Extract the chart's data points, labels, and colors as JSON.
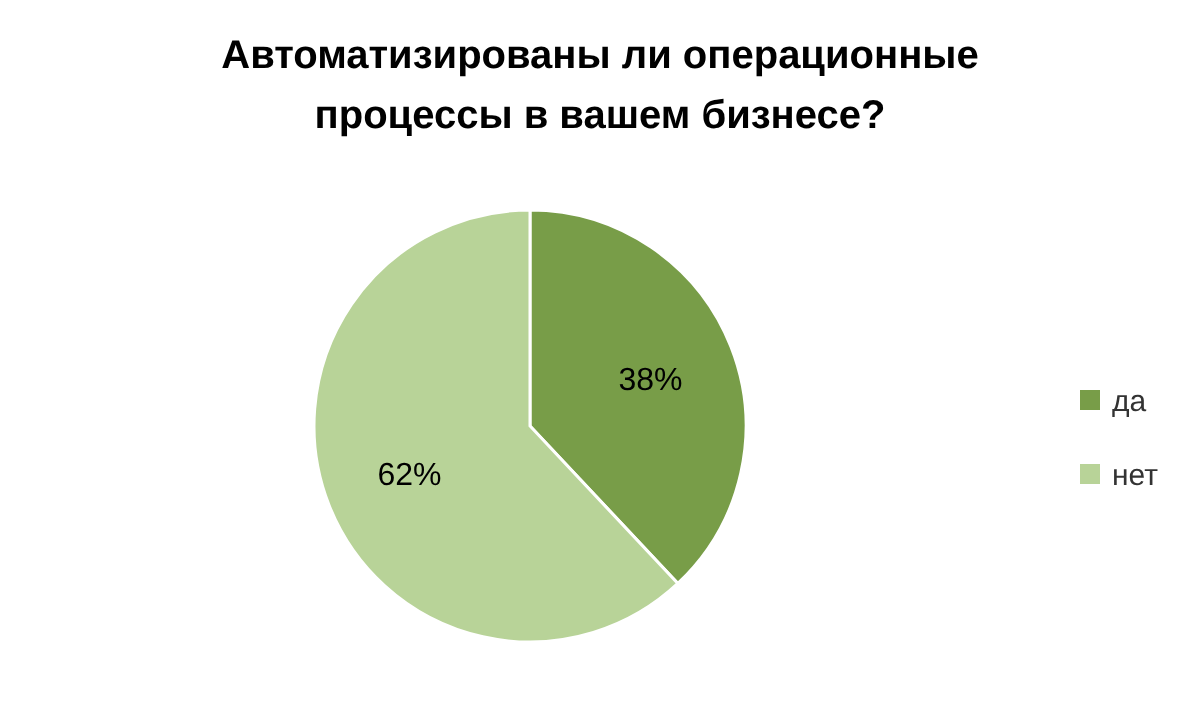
{
  "chart_data": {
    "type": "pie",
    "title": "Автоматизированы ли операционные процессы в вашем бизнесе?",
    "categories": [
      "да",
      "нет"
    ],
    "values": [
      38,
      62
    ],
    "colors": [
      "#789d48",
      "#b8d398"
    ],
    "value_labels": [
      "38%",
      "62%"
    ],
    "legend": "right"
  }
}
